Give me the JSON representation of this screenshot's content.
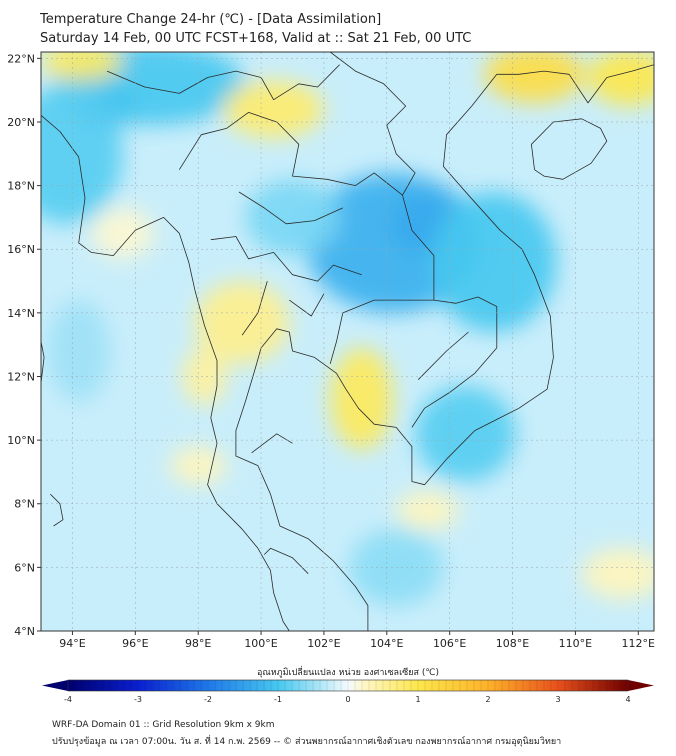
{
  "title": {
    "line1": "Temperature Change 24-hr (℃) - [Data Assimilation]",
    "line2": "Saturday 14 Feb, 00 UTC FCST+168, Valid at :: Sat 21 Feb, 00 UTC"
  },
  "map": {
    "lon_range": [
      93,
      112.5
    ],
    "lat_range": [
      4,
      22.2
    ],
    "lon_ticks": [
      "94°E",
      "96°E",
      "98°E",
      "100°E",
      "102°E",
      "104°E",
      "106°E",
      "108°E",
      "110°E",
      "112°E"
    ],
    "lat_ticks": [
      "4°N",
      "6°N",
      "8°N",
      "10°N",
      "12°N",
      "14°N",
      "16°N",
      "18°N",
      "20°N",
      "22°N"
    ],
    "base_color": "#c9eefb",
    "features": [
      {
        "type": "cold",
        "lon": 105.3,
        "lat": 16.8,
        "rlon": 1.2,
        "rlat": 1.0,
        "value": -2.2
      },
      {
        "type": "cold",
        "lon": 104.2,
        "lat": 16.2,
        "rlon": 2.8,
        "rlat": 2.2,
        "value": -1.3
      },
      {
        "type": "cold",
        "lon": 95.0,
        "lat": 20.6,
        "rlon": 1.0,
        "rlat": 0.8,
        "value": -1.6
      },
      {
        "type": "cold",
        "lon": 96.5,
        "lat": 21.2,
        "rlon": 3.0,
        "rlat": 1.3,
        "value": -1.0
      },
      {
        "type": "cold",
        "lon": 93.8,
        "lat": 19.0,
        "rlon": 1.8,
        "rlat": 2.2,
        "value": -0.9
      },
      {
        "type": "cold",
        "lon": 107.4,
        "lat": 15.6,
        "rlon": 2.0,
        "rlat": 2.2,
        "value": -1.0
      },
      {
        "type": "cold",
        "lon": 106.5,
        "lat": 10.2,
        "rlon": 1.6,
        "rlat": 1.5,
        "value": -0.9
      },
      {
        "type": "cold",
        "lon": 101.0,
        "lat": 17.0,
        "rlon": 1.5,
        "rlat": 1.2,
        "value": -0.7
      },
      {
        "type": "cold",
        "lon": 104.3,
        "lat": 6.0,
        "rlon": 1.5,
        "rlat": 1.2,
        "value": -0.6
      },
      {
        "type": "cold",
        "lon": 94.2,
        "lat": 12.8,
        "rlon": 1.0,
        "rlat": 1.6,
        "value": -0.5
      },
      {
        "type": "warm",
        "lon": 103.2,
        "lat": 11.3,
        "rlon": 1.0,
        "rlat": 1.6,
        "value": 0.9
      },
      {
        "type": "warm",
        "lon": 99.4,
        "lat": 13.7,
        "rlon": 1.5,
        "rlat": 1.3,
        "value": 0.6
      },
      {
        "type": "warm",
        "lon": 100.4,
        "lat": 20.4,
        "rlon": 1.6,
        "rlat": 0.9,
        "value": 0.8
      },
      {
        "type": "warm",
        "lon": 108.7,
        "lat": 21.5,
        "rlon": 1.6,
        "rlat": 0.9,
        "value": 1.2
      },
      {
        "type": "warm",
        "lon": 111.7,
        "lat": 21.4,
        "rlon": 1.3,
        "rlat": 0.9,
        "value": 1.0
      },
      {
        "type": "warm",
        "lon": 94.3,
        "lat": 21.9,
        "rlon": 1.3,
        "rlat": 0.6,
        "value": 0.9
      },
      {
        "type": "warm",
        "lon": 98.2,
        "lat": 12.0,
        "rlon": 0.7,
        "rlat": 0.9,
        "value": 0.5
      },
      {
        "type": "warm",
        "lon": 105.3,
        "lat": 7.8,
        "rlon": 1.0,
        "rlat": 0.6,
        "value": 0.3
      },
      {
        "type": "warm",
        "lon": 98.0,
        "lat": 9.2,
        "rlon": 0.9,
        "rlat": 0.6,
        "value": 0.3
      },
      {
        "type": "warm",
        "lon": 111.5,
        "lat": 5.8,
        "rlon": 1.3,
        "rlat": 0.8,
        "value": 0.3
      },
      {
        "type": "warm",
        "lon": 95.6,
        "lat": 16.5,
        "rlon": 1.0,
        "rlat": 0.8,
        "value": 0.2
      }
    ]
  },
  "colorbar": {
    "label": "อุณหภูมิเปลี่ยนแปลง หน่วย องศาเซลเซียส (℃)",
    "min": -4,
    "max": 4,
    "ticks": [
      "-4",
      "-3",
      "-2",
      "-1",
      "0",
      "1",
      "2",
      "3",
      "4"
    ],
    "stops": [
      {
        "v": -4,
        "c": "#00006e"
      },
      {
        "v": -3,
        "c": "#0a1fd0"
      },
      {
        "v": -2,
        "c": "#1f78e8"
      },
      {
        "v": -1,
        "c": "#46c8f0"
      },
      {
        "v": -0.25,
        "c": "#c8eef9"
      },
      {
        "v": 0,
        "c": "#f4fbff"
      },
      {
        "v": 0.25,
        "c": "#fff6c4"
      },
      {
        "v": 1,
        "c": "#fde74c"
      },
      {
        "v": 2,
        "c": "#fdb22a"
      },
      {
        "v": 3,
        "c": "#e8501c"
      },
      {
        "v": 4,
        "c": "#700000"
      }
    ]
  },
  "footer": {
    "line1": "WRF-DA Domain 01 :: Grid Resolution 9km x 9km",
    "line2": "ปรับปรุงข้อมูล ณ เวลา 07:00น. วัน ส. ที่ 14 ก.พ. 2569 -- © ส่วนพยากรณ์อากาศเชิงตัวเลข กองพยากรณ์อากาศ กรมอุตุนิยมวิทยา"
  }
}
